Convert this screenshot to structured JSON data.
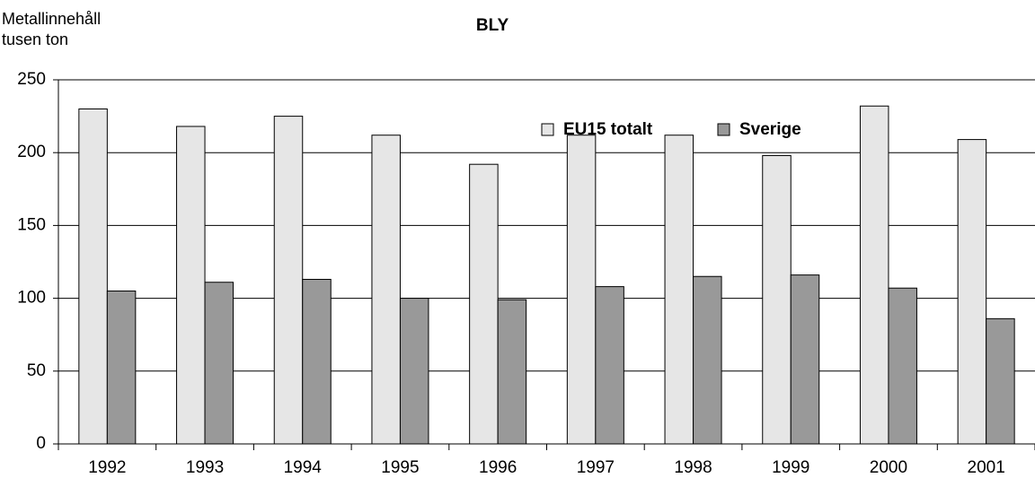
{
  "chart_data": {
    "type": "bar",
    "title": "BLY",
    "ylabel": [
      "Metallinnehåll",
      "tusen ton"
    ],
    "categories": [
      "1992",
      "1993",
      "1994",
      "1995",
      "1996",
      "1997",
      "1998",
      "1999",
      "2000",
      "2001"
    ],
    "series": [
      {
        "name": "EU15 totalt",
        "color": "#e6e6e6",
        "values": [
          230,
          218,
          225,
          212,
          192,
          212,
          212,
          198,
          232,
          209
        ]
      },
      {
        "name": "Sverige",
        "color": "#999999",
        "values": [
          105,
          111,
          113,
          100,
          99,
          108,
          115,
          116,
          107,
          86
        ]
      }
    ],
    "ylim": [
      0,
      250
    ],
    "yticks": [
      0,
      50,
      100,
      150,
      200,
      250
    ],
    "grid": true,
    "legend": "top-right"
  }
}
